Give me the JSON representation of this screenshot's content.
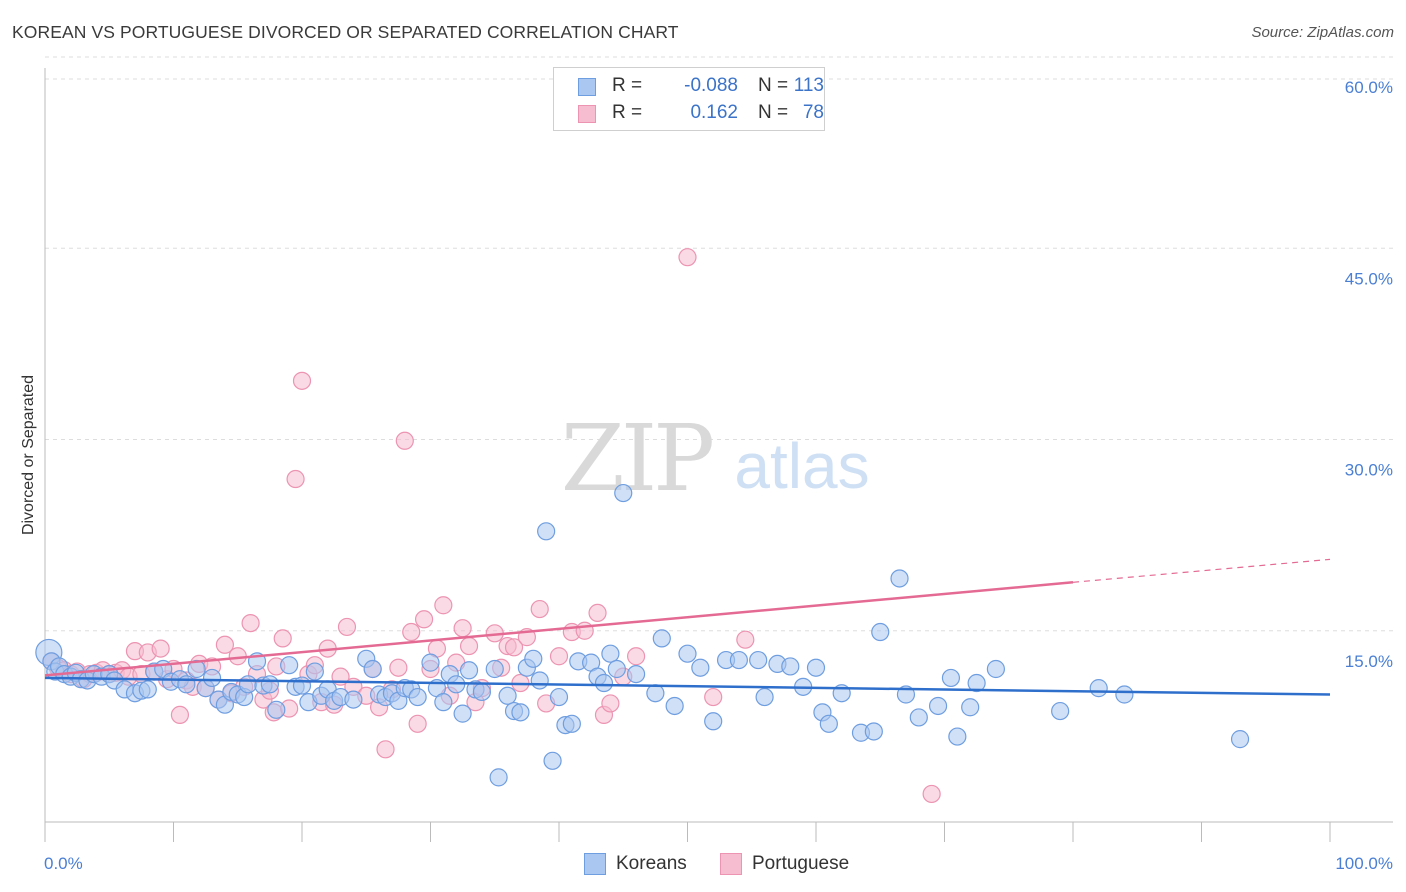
{
  "title": "KOREAN VS PORTUGUESE DIVORCED OR SEPARATED CORRELATION CHART",
  "source": "Source: ZipAtlas.com",
  "watermark": {
    "zip": "ZIP",
    "atlas": "atlas"
  },
  "legend": {
    "rows": [
      {
        "r_label": "R =",
        "r_value": "-0.088",
        "n_label": "N =",
        "n_value": "113"
      },
      {
        "r_label": "R =",
        "r_value": "0.162",
        "n_label": "N =",
        "n_value": "78"
      }
    ]
  },
  "bottom_legend": [
    "Koreans",
    "Portuguese"
  ],
  "colors": {
    "koreans_fill": "#a9c7f0",
    "koreans_stroke": "#6f9ee0",
    "koreans_line": "#2f6fcc",
    "portuguese_fill": "#f6bccf",
    "portuguese_stroke": "#ec94b2",
    "portuguese_line": "#e46a93",
    "tick_label": "#4a7fd4",
    "grid": "#dddddd"
  },
  "chart_data": {
    "type": "scatter",
    "title": "KOREAN VS PORTUGUESE DIVORCED OR SEPARATED CORRELATION CHART",
    "xlabel": "",
    "ylabel": "Divorced or Separated",
    "xlim": [
      0,
      100
    ],
    "ylim": [
      0,
      62
    ],
    "x_tick_labels": [
      "0.0%",
      "100.0%"
    ],
    "y_ticks": [
      15,
      30,
      45,
      60
    ],
    "y_tick_labels": [
      "15.0%",
      "30.0%",
      "45.0%",
      "60.0%"
    ],
    "grid": true,
    "legend_position": "top-center",
    "series": [
      {
        "name": "Koreans",
        "R": -0.088,
        "N": 113,
        "trend": {
          "x": [
            0,
            100
          ],
          "y": [
            11.3,
            10.0
          ]
        },
        "points": [
          [
            0.3,
            13.3
          ],
          [
            0.5,
            12.6
          ],
          [
            0.8,
            11.8
          ],
          [
            1.1,
            12.2
          ],
          [
            1.5,
            11.6
          ],
          [
            2.0,
            11.4
          ],
          [
            2.4,
            11.7
          ],
          [
            2.8,
            11.2
          ],
          [
            3.3,
            11.1
          ],
          [
            3.8,
            11.6
          ],
          [
            4.4,
            11.4
          ],
          [
            5.0,
            11.6
          ],
          [
            5.4,
            11.1
          ],
          [
            6.2,
            10.4
          ],
          [
            7.0,
            10.1
          ],
          [
            7.5,
            10.3
          ],
          [
            8.0,
            10.4
          ],
          [
            8.5,
            11.8
          ],
          [
            9.2,
            12.0
          ],
          [
            9.8,
            11.0
          ],
          [
            10.5,
            11.2
          ],
          [
            11.0,
            10.8
          ],
          [
            11.8,
            12.0
          ],
          [
            12.5,
            10.5
          ],
          [
            13.0,
            11.3
          ],
          [
            13.5,
            9.6
          ],
          [
            14.0,
            9.2
          ],
          [
            14.5,
            10.2
          ],
          [
            15.0,
            10.0
          ],
          [
            15.5,
            9.8
          ],
          [
            15.8,
            10.8
          ],
          [
            16.5,
            12.6
          ],
          [
            17.0,
            10.7
          ],
          [
            17.5,
            10.8
          ],
          [
            18.0,
            8.8
          ],
          [
            19.0,
            12.3
          ],
          [
            19.5,
            10.6
          ],
          [
            20.0,
            10.7
          ],
          [
            20.5,
            9.4
          ],
          [
            21.0,
            11.8
          ],
          [
            21.5,
            9.9
          ],
          [
            22.0,
            10.4
          ],
          [
            22.5,
            9.5
          ],
          [
            23.0,
            9.8
          ],
          [
            24.0,
            9.6
          ],
          [
            25.0,
            12.8
          ],
          [
            25.5,
            12.0
          ],
          [
            26.0,
            10.0
          ],
          [
            26.5,
            9.8
          ],
          [
            27.0,
            10.1
          ],
          [
            27.5,
            9.5
          ],
          [
            28.0,
            10.5
          ],
          [
            28.5,
            10.4
          ],
          [
            29.0,
            9.8
          ],
          [
            30.0,
            12.5
          ],
          [
            30.5,
            10.5
          ],
          [
            31.0,
            9.4
          ],
          [
            31.5,
            11.6
          ],
          [
            32.0,
            10.8
          ],
          [
            32.5,
            8.5
          ],
          [
            33.0,
            11.9
          ],
          [
            33.5,
            10.4
          ],
          [
            34.0,
            10.2
          ],
          [
            35.0,
            12.0
          ],
          [
            35.3,
            3.5
          ],
          [
            36.0,
            9.9
          ],
          [
            36.5,
            8.7
          ],
          [
            37.0,
            8.6
          ],
          [
            37.5,
            12.1
          ],
          [
            38.0,
            12.8
          ],
          [
            38.5,
            11.1
          ],
          [
            39.0,
            22.8
          ],
          [
            39.5,
            4.8
          ],
          [
            40.0,
            9.8
          ],
          [
            40.5,
            7.6
          ],
          [
            41.0,
            7.7
          ],
          [
            41.5,
            12.6
          ],
          [
            42.5,
            12.5
          ],
          [
            43.0,
            11.4
          ],
          [
            43.5,
            10.9
          ],
          [
            44.0,
            13.2
          ],
          [
            44.5,
            12.0
          ],
          [
            45.0,
            25.8
          ],
          [
            46.0,
            11.6
          ],
          [
            47.5,
            10.1
          ],
          [
            48.0,
            14.4
          ],
          [
            49.0,
            9.1
          ],
          [
            50.0,
            13.2
          ],
          [
            51.0,
            12.1
          ],
          [
            52.0,
            7.9
          ],
          [
            53.0,
            12.7
          ],
          [
            54.0,
            12.7
          ],
          [
            55.5,
            12.7
          ],
          [
            56.0,
            9.8
          ],
          [
            57.0,
            12.4
          ],
          [
            58.0,
            12.2
          ],
          [
            59.0,
            10.6
          ],
          [
            60.0,
            12.1
          ],
          [
            60.5,
            8.6
          ],
          [
            61.0,
            7.7
          ],
          [
            62.0,
            10.1
          ],
          [
            63.5,
            7.0
          ],
          [
            64.5,
            7.1
          ],
          [
            65.0,
            14.9
          ],
          [
            66.5,
            19.1
          ],
          [
            67.0,
            10.0
          ],
          [
            68.0,
            8.2
          ],
          [
            69.5,
            9.1
          ],
          [
            70.5,
            11.3
          ],
          [
            71.0,
            6.7
          ],
          [
            72.0,
            9.0
          ],
          [
            72.5,
            10.9
          ],
          [
            74.0,
            12.0
          ],
          [
            79.0,
            8.7
          ],
          [
            82.0,
            10.5
          ],
          [
            84.0,
            10.0
          ],
          [
            93.0,
            6.5
          ]
        ]
      },
      {
        "name": "Portuguese",
        "R": 0.162,
        "N": 78,
        "trend": {
          "x": [
            0,
            80
          ],
          "y": [
            11.5,
            18.8
          ]
        },
        "trend_dashed": {
          "x": [
            80,
            100
          ],
          "y": [
            18.8,
            20.6
          ]
        },
        "points": [
          [
            0.5,
            12.6
          ],
          [
            1.0,
            12.1
          ],
          [
            1.5,
            11.9
          ],
          [
            2.0,
            11.6
          ],
          [
            2.5,
            11.8
          ],
          [
            3.0,
            11.2
          ],
          [
            3.5,
            11.6
          ],
          [
            4.0,
            11.7
          ],
          [
            4.5,
            11.9
          ],
          [
            5.0,
            11.6
          ],
          [
            5.5,
            11.7
          ],
          [
            6.0,
            11.9
          ],
          [
            6.5,
            11.4
          ],
          [
            7.0,
            13.4
          ],
          [
            7.5,
            11.6
          ],
          [
            8.0,
            13.3
          ],
          [
            8.5,
            11.8
          ],
          [
            9.0,
            13.6
          ],
          [
            9.5,
            11.2
          ],
          [
            10.0,
            12.0
          ],
          [
            10.5,
            8.4
          ],
          [
            11.0,
            11.1
          ],
          [
            11.5,
            10.6
          ],
          [
            12.0,
            12.4
          ],
          [
            12.5,
            10.5
          ],
          [
            13.0,
            12.2
          ],
          [
            13.5,
            9.6
          ],
          [
            14.0,
            13.9
          ],
          [
            14.5,
            10.1
          ],
          [
            15.0,
            13.0
          ],
          [
            15.5,
            10.6
          ],
          [
            16.0,
            15.6
          ],
          [
            16.5,
            11.6
          ],
          [
            17.0,
            9.6
          ],
          [
            17.5,
            10.3
          ],
          [
            17.8,
            8.6
          ],
          [
            18.0,
            12.2
          ],
          [
            18.5,
            14.4
          ],
          [
            19.0,
            8.9
          ],
          [
            19.5,
            26.9
          ],
          [
            20.0,
            34.6
          ],
          [
            20.5,
            11.6
          ],
          [
            21.0,
            12.3
          ],
          [
            21.5,
            9.4
          ],
          [
            22.0,
            13.6
          ],
          [
            22.5,
            9.2
          ],
          [
            23.0,
            11.4
          ],
          [
            23.5,
            15.3
          ],
          [
            24.0,
            10.6
          ],
          [
            25.0,
            9.9
          ],
          [
            25.5,
            12.0
          ],
          [
            26.0,
            9.0
          ],
          [
            26.5,
            5.7
          ],
          [
            27.0,
            10.4
          ],
          [
            27.5,
            12.1
          ],
          [
            28.0,
            29.9
          ],
          [
            28.5,
            14.9
          ],
          [
            29.0,
            7.7
          ],
          [
            29.5,
            15.9
          ],
          [
            30.0,
            12.0
          ],
          [
            30.5,
            13.6
          ],
          [
            31.0,
            17.0
          ],
          [
            31.5,
            9.9
          ],
          [
            32.0,
            12.5
          ],
          [
            32.5,
            15.2
          ],
          [
            33.0,
            13.8
          ],
          [
            33.5,
            9.4
          ],
          [
            34.0,
            10.5
          ],
          [
            35.0,
            14.8
          ],
          [
            35.5,
            12.1
          ],
          [
            36.0,
            13.8
          ],
          [
            36.5,
            13.7
          ],
          [
            37.0,
            10.9
          ],
          [
            37.5,
            14.5
          ],
          [
            38.5,
            16.7
          ],
          [
            39.0,
            9.3
          ],
          [
            40.0,
            13.0
          ],
          [
            41.0,
            14.9
          ],
          [
            42.0,
            15.0
          ],
          [
            43.0,
            16.4
          ],
          [
            43.5,
            8.4
          ],
          [
            44.0,
            9.3
          ],
          [
            45.0,
            11.4
          ],
          [
            46.0,
            13.0
          ],
          [
            50.0,
            44.3
          ],
          [
            52.0,
            9.8
          ],
          [
            54.5,
            14.3
          ],
          [
            69.0,
            2.2
          ]
        ]
      }
    ]
  }
}
